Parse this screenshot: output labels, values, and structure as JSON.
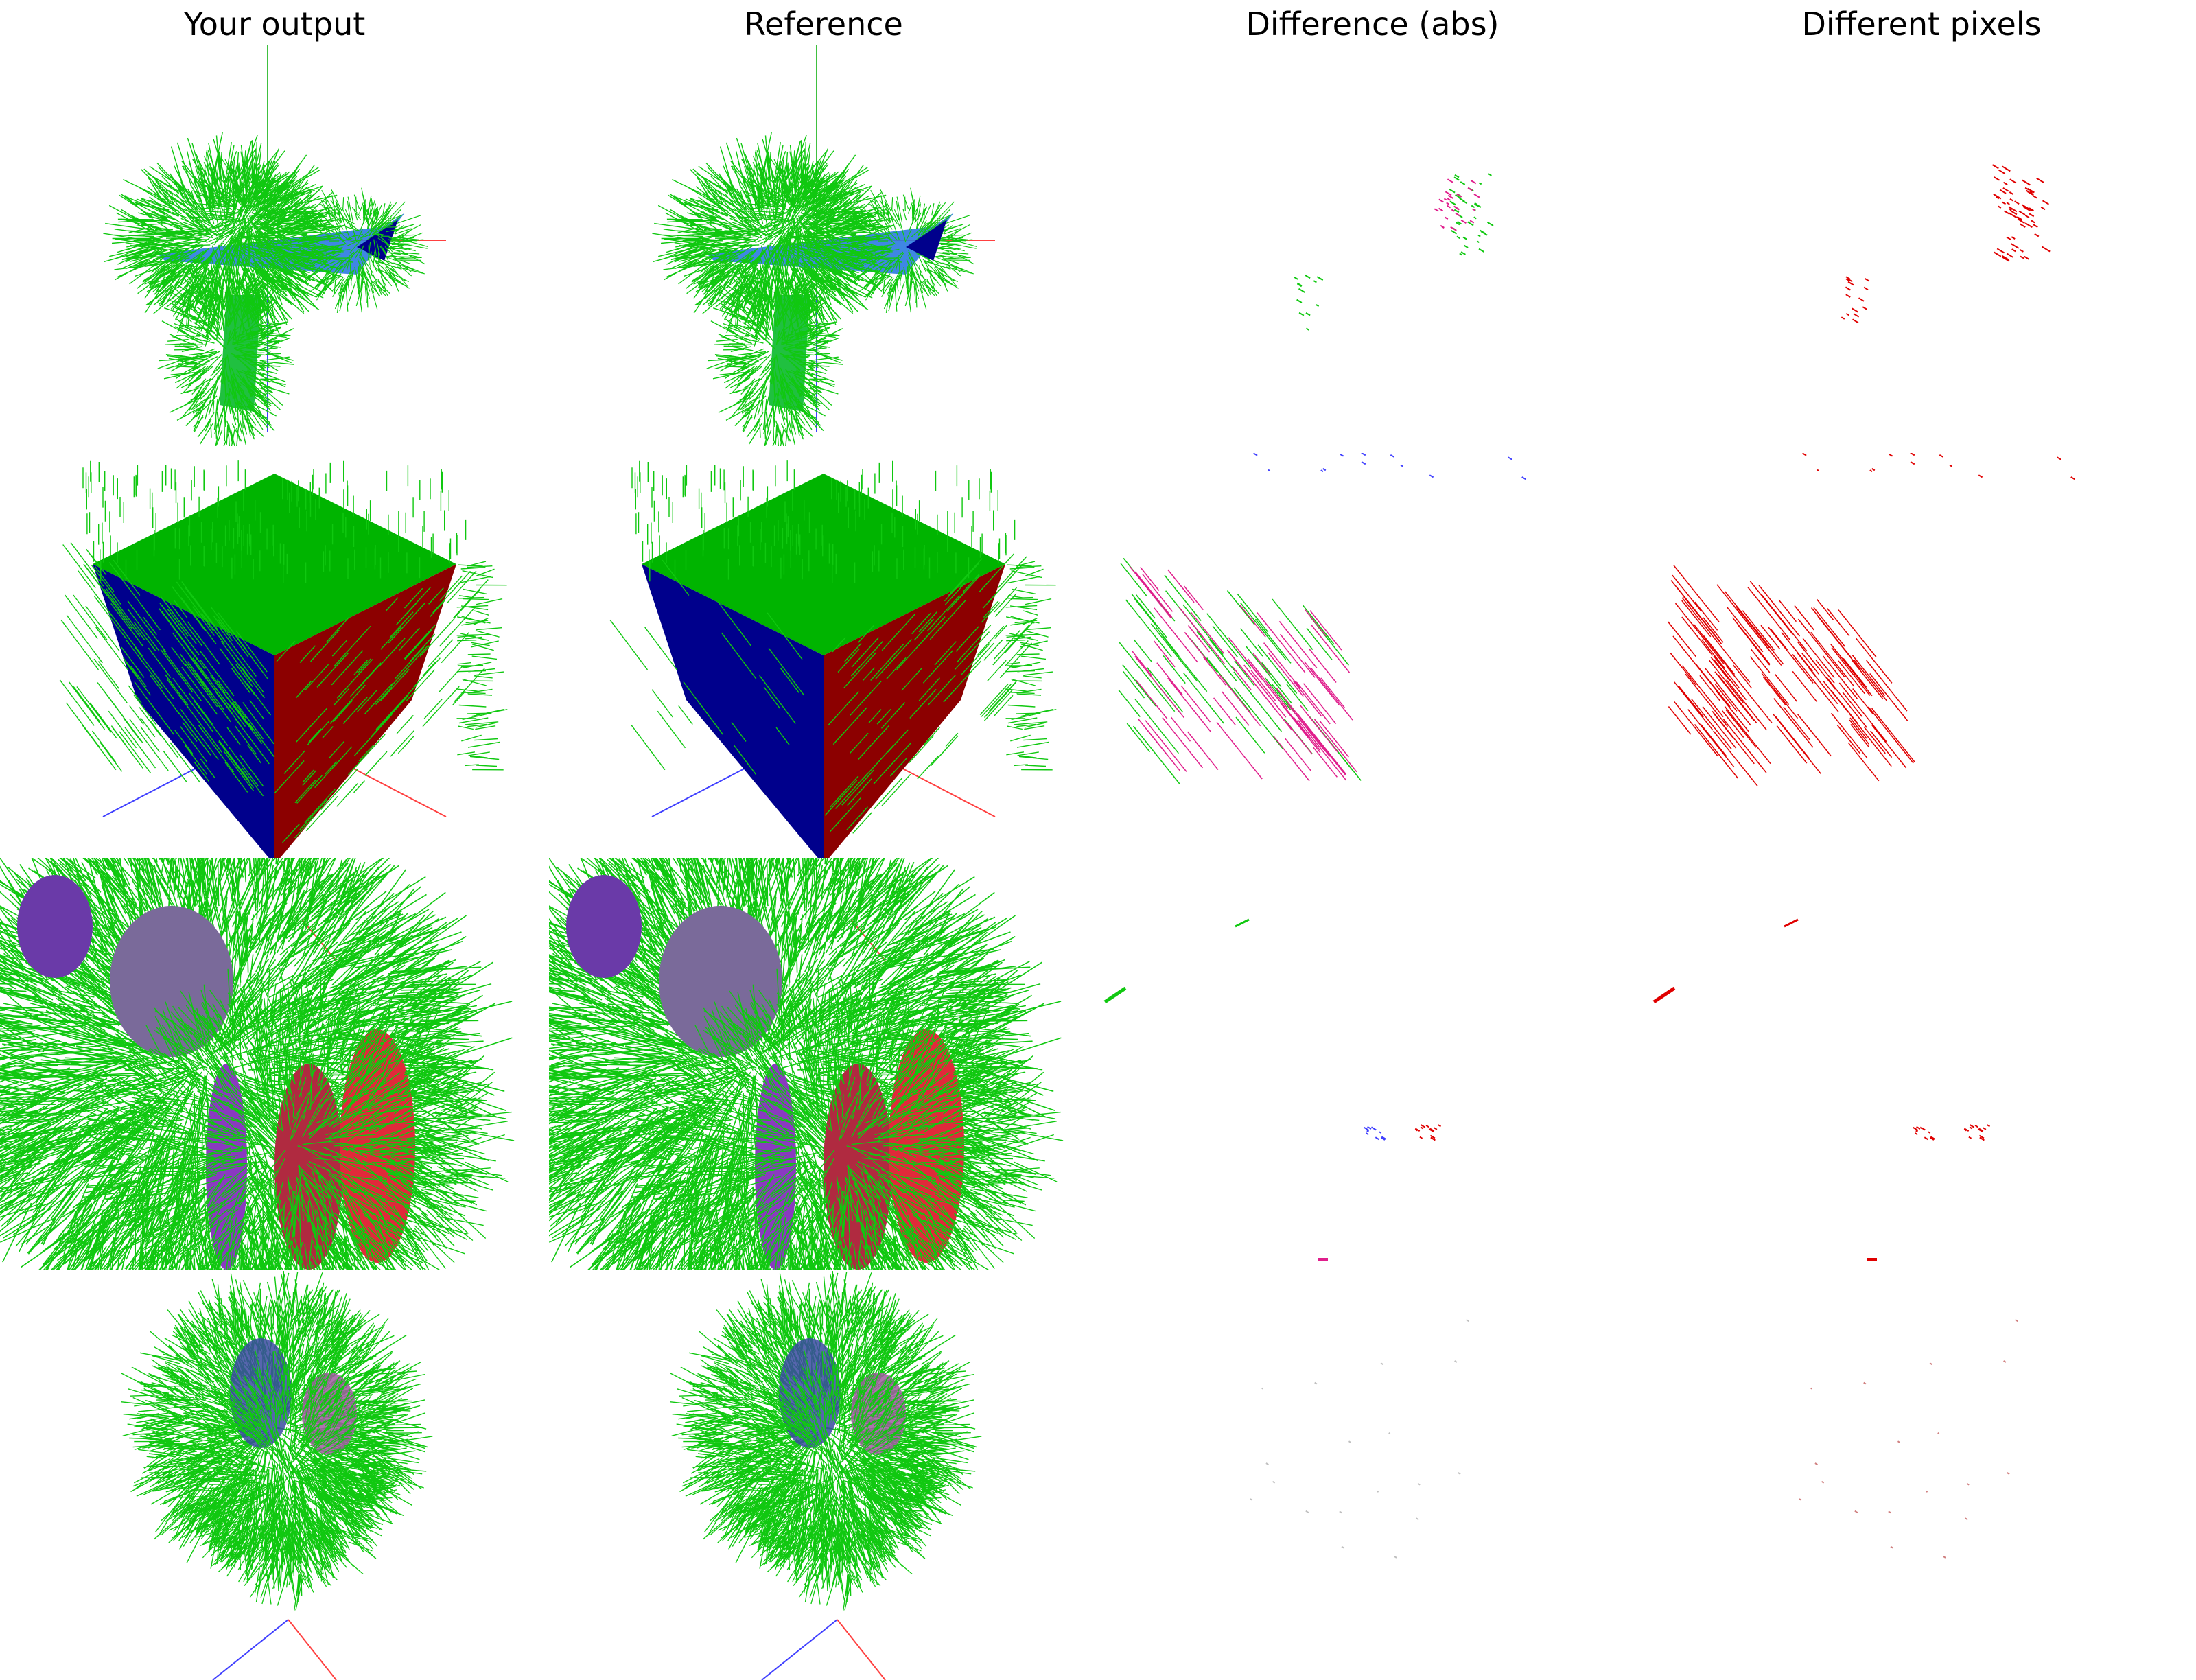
{
  "columns": [
    {
      "title": "Your output"
    },
    {
      "title": "Reference"
    },
    {
      "title": "Difference (abs)"
    },
    {
      "title": "Different pixels"
    }
  ],
  "rows": [
    {
      "subject": "airplane"
    },
    {
      "subject": "cube"
    },
    {
      "subject": "bunny-closeup"
    },
    {
      "subject": "bunny"
    }
  ],
  "colors": {
    "normals": "#10c810",
    "face_blue": "#00008c",
    "face_red": "#8c0000",
    "face_green": "#00b400",
    "axis_red": "#ff4040",
    "axis_green": "#40c040",
    "axis_blue": "#4040ff",
    "diff_pixel": "#e00000",
    "diff_magenta": "#e01e8c"
  }
}
